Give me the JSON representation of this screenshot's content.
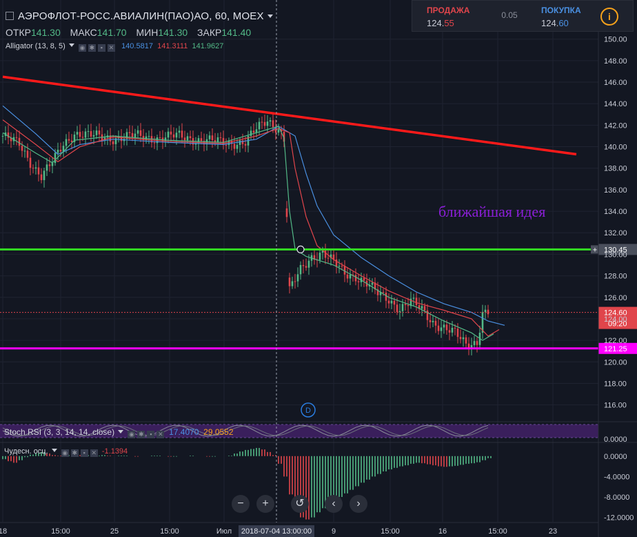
{
  "header": {
    "title": "АЭРОФЛОТ-РОСС.АВИАЛИН(ПАО)АО, 60, MOEX",
    "ohlc": [
      {
        "label": "ОТКР",
        "value": "141.30"
      },
      {
        "label": "МАКС",
        "value": "141.70"
      },
      {
        "label": "МИН",
        "value": "141.30"
      },
      {
        "label": "ЗАКР",
        "value": "141.40"
      }
    ],
    "alligator": {
      "label": "Alligator (13, 8, 5)",
      "v1": "140.5817",
      "v2": "141.3111",
      "v3": "141.9627"
    }
  },
  "trade_panel": {
    "sell_label": "ПРОДАЖА",
    "sell_price_main": "124.",
    "sell_price_tail": "55",
    "spread": "0.05",
    "buy_label": "ПОКУПКА",
    "buy_price_main": "124.",
    "buy_price_tail": "60",
    "info": "i"
  },
  "colors": {
    "background": "#131722",
    "bull": "#53b987",
    "bear": "#e0454b",
    "jaw": "#4a90e2",
    "teeth": "#e0454b",
    "lips": "#53b987",
    "trendline": "#ff1a1a",
    "level_green": "#33dd22",
    "level_magenta": "#ff00ff",
    "annotation": "#8a1fd6"
  },
  "indicators": {
    "stoch_label": "Stoch RSI (3, 3, 14, 14, close)",
    "stoch_k": "17.4070",
    "stoch_d": "29.0552",
    "ao_label": "Чудесн. осц.",
    "ao_value": "-1.1394"
  },
  "nav_icons": [
    "minus-icon",
    "plus-icon",
    "reset-icon",
    "chevron-left-icon",
    "chevron-right-icon"
  ],
  "chart_data": {
    "type": "candlestick",
    "y_axis": {
      "ticks": [
        "150.00",
        "148.00",
        "146.00",
        "144.00",
        "142.00",
        "140.00",
        "138.00",
        "136.00",
        "134.00",
        "132.00",
        "130.00",
        "128.00",
        "126.00",
        "124.00",
        "122.00",
        "120.00",
        "118.00",
        "116.00"
      ],
      "ylim": [
        114.5,
        151.2
      ]
    },
    "x_axis": {
      "ticks": [
        "18",
        "15:00",
        "25",
        "15:00",
        "Июл",
        "9",
        "15:00",
        "16",
        "15:00",
        "23"
      ],
      "crosshair_label": "2018-07-04 13:00:00"
    },
    "price_series": [
      {
        "x": 0,
        "y": 141.0
      },
      {
        "x": 3,
        "y": 140.2
      },
      {
        "x": 5,
        "y": 138.6
      },
      {
        "x": 7,
        "y": 137.3
      },
      {
        "x": 9,
        "y": 138.5
      },
      {
        "x": 11,
        "y": 140.2
      },
      {
        "x": 13,
        "y": 141.3
      },
      {
        "x": 16,
        "y": 141.0
      },
      {
        "x": 20,
        "y": 140.8
      },
      {
        "x": 24,
        "y": 141.0
      },
      {
        "x": 28,
        "y": 140.8
      },
      {
        "x": 32,
        "y": 141.0
      },
      {
        "x": 36,
        "y": 140.6
      },
      {
        "x": 40,
        "y": 140.4
      },
      {
        "x": 44,
        "y": 140.4
      },
      {
        "x": 46,
        "y": 141.6
      },
      {
        "x": 48,
        "y": 142.5
      },
      {
        "x": 50,
        "y": 141.7
      },
      {
        "x": 51,
        "y": 140.7
      },
      {
        "x": 52,
        "y": 126.6
      },
      {
        "x": 54,
        "y": 128.5
      },
      {
        "x": 56,
        "y": 129.8
      },
      {
        "x": 58,
        "y": 130.2
      },
      {
        "x": 60,
        "y": 129.2
      },
      {
        "x": 62,
        "y": 128.2
      },
      {
        "x": 64,
        "y": 128.0
      },
      {
        "x": 66,
        "y": 127.3
      },
      {
        "x": 68,
        "y": 126.3
      },
      {
        "x": 70,
        "y": 125.8
      },
      {
        "x": 72,
        "y": 125.0
      },
      {
        "x": 74,
        "y": 125.6
      },
      {
        "x": 76,
        "y": 124.8
      },
      {
        "x": 78,
        "y": 123.7
      },
      {
        "x": 80,
        "y": 123.2
      },
      {
        "x": 82,
        "y": 122.6
      },
      {
        "x": 84,
        "y": 121.6
      },
      {
        "x": 86,
        "y": 121.9
      },
      {
        "x": 87,
        "y": 124.6
      },
      {
        "x": 88,
        "y": 124.6
      }
    ],
    "alligator_lines": {
      "jaw": [
        {
          "x": 0,
          "y": 143.8
        },
        {
          "x": 6,
          "y": 141.2
        },
        {
          "x": 10,
          "y": 139.3
        },
        {
          "x": 14,
          "y": 140.2
        },
        {
          "x": 20,
          "y": 140.7
        },
        {
          "x": 30,
          "y": 140.4
        },
        {
          "x": 40,
          "y": 140.2
        },
        {
          "x": 46,
          "y": 140.7
        },
        {
          "x": 50,
          "y": 141.9
        },
        {
          "x": 53,
          "y": 141.0
        },
        {
          "x": 55,
          "y": 137.5
        },
        {
          "x": 57,
          "y": 134.5
        },
        {
          "x": 60,
          "y": 131.8
        },
        {
          "x": 65,
          "y": 129.7
        },
        {
          "x": 70,
          "y": 128.0
        },
        {
          "x": 75,
          "y": 126.5
        },
        {
          "x": 80,
          "y": 125.4
        },
        {
          "x": 85,
          "y": 124.6
        },
        {
          "x": 88,
          "y": 123.8
        },
        {
          "x": 91,
          "y": 123.4
        }
      ],
      "teeth": [
        {
          "x": 0,
          "y": 142.5
        },
        {
          "x": 6,
          "y": 140.2
        },
        {
          "x": 10,
          "y": 138.6
        },
        {
          "x": 14,
          "y": 140.0
        },
        {
          "x": 20,
          "y": 140.9
        },
        {
          "x": 30,
          "y": 140.5
        },
        {
          "x": 40,
          "y": 140.3
        },
        {
          "x": 46,
          "y": 141.0
        },
        {
          "x": 50,
          "y": 141.7
        },
        {
          "x": 52,
          "y": 141.3
        },
        {
          "x": 53,
          "y": 138.0
        },
        {
          "x": 55,
          "y": 133.5
        },
        {
          "x": 57,
          "y": 130.8
        },
        {
          "x": 60,
          "y": 129.5
        },
        {
          "x": 65,
          "y": 128.0
        },
        {
          "x": 70,
          "y": 126.6
        },
        {
          "x": 75,
          "y": 125.5
        },
        {
          "x": 80,
          "y": 124.8
        },
        {
          "x": 85,
          "y": 124.0
        },
        {
          "x": 88,
          "y": 122.4
        },
        {
          "x": 90,
          "y": 123.0
        }
      ],
      "lips": [
        {
          "x": 0,
          "y": 141.3
        },
        {
          "x": 6,
          "y": 139.4
        },
        {
          "x": 9,
          "y": 138.5
        },
        {
          "x": 13,
          "y": 140.6
        },
        {
          "x": 20,
          "y": 141.0
        },
        {
          "x": 30,
          "y": 140.6
        },
        {
          "x": 40,
          "y": 140.4
        },
        {
          "x": 46,
          "y": 141.3
        },
        {
          "x": 50,
          "y": 141.9
        },
        {
          "x": 51,
          "y": 140.8
        },
        {
          "x": 52,
          "y": 134.0
        },
        {
          "x": 53,
          "y": 130.5
        },
        {
          "x": 55,
          "y": 129.8
        },
        {
          "x": 60,
          "y": 129.0
        },
        {
          "x": 65,
          "y": 127.6
        },
        {
          "x": 70,
          "y": 126.0
        },
        {
          "x": 75,
          "y": 125.1
        },
        {
          "x": 80,
          "y": 123.8
        },
        {
          "x": 85,
          "y": 122.7
        },
        {
          "x": 87,
          "y": 122.0
        },
        {
          "x": 89,
          "y": 122.6
        }
      ]
    },
    "trendline": {
      "x1": 0,
      "y1": 146.5,
      "x2": 104,
      "y2": 139.3
    },
    "horizontal_levels": [
      {
        "name": "resistance",
        "value": 130.45,
        "label": "130.45",
        "color": "#33dd22"
      },
      {
        "name": "support",
        "value": 121.25,
        "label": "121.25",
        "color": "#ff00ff"
      }
    ],
    "current_price": {
      "value": 124.6,
      "label": "124.60",
      "countdown": "09:20"
    },
    "annotation": {
      "text": "ближайшая идея",
      "x": 79,
      "y": 133.5
    },
    "stoch_rsi": {
      "k": 17.407,
      "d": 29.0552
    },
    "awesome_oscillator": {
      "ticks": [
        "0.0000",
        "-4.0000",
        "-8.0000",
        "-12.0000"
      ],
      "ylim": [
        -13.0,
        2.0
      ],
      "values": [
        -0.6,
        -1.0,
        -1.3,
        -0.8,
        -0.2,
        0.3,
        0.6,
        0.8,
        0.5,
        0.2,
        0.1,
        0.1,
        0.2,
        0.3,
        0.2,
        0.2,
        0.1,
        0.1,
        0.2,
        0.1,
        0.0,
        0.1,
        0.1,
        0.0,
        -0.1,
        0.0,
        0.0,
        0.1,
        0.1,
        0.0,
        -0.1,
        -0.1,
        0.0,
        0.0,
        0.1,
        0.0,
        0.0,
        -0.1,
        -0.1,
        0.0,
        0.0,
        0.1,
        0.5,
        0.9,
        1.2,
        1.4,
        1.6,
        1.3,
        0.8,
        0.2,
        -1.5,
        -4.0,
        -7.5,
        -10.5,
        -12.0,
        -12.4,
        -12.0,
        -11.0,
        -10.2,
        -9.5,
        -8.7,
        -8.0,
        -7.3,
        -6.6,
        -5.9,
        -5.2,
        -4.6,
        -4.0,
        -3.5,
        -3.0,
        -2.6,
        -2.3,
        -2.0,
        -1.8,
        -1.5,
        -1.3,
        -1.4,
        -1.6,
        -1.8,
        -2.0,
        -2.1,
        -2.0,
        -1.9,
        -1.7,
        -1.5,
        -1.4,
        -1.2,
        -0.8,
        -0.4,
        0.0
      ]
    }
  }
}
